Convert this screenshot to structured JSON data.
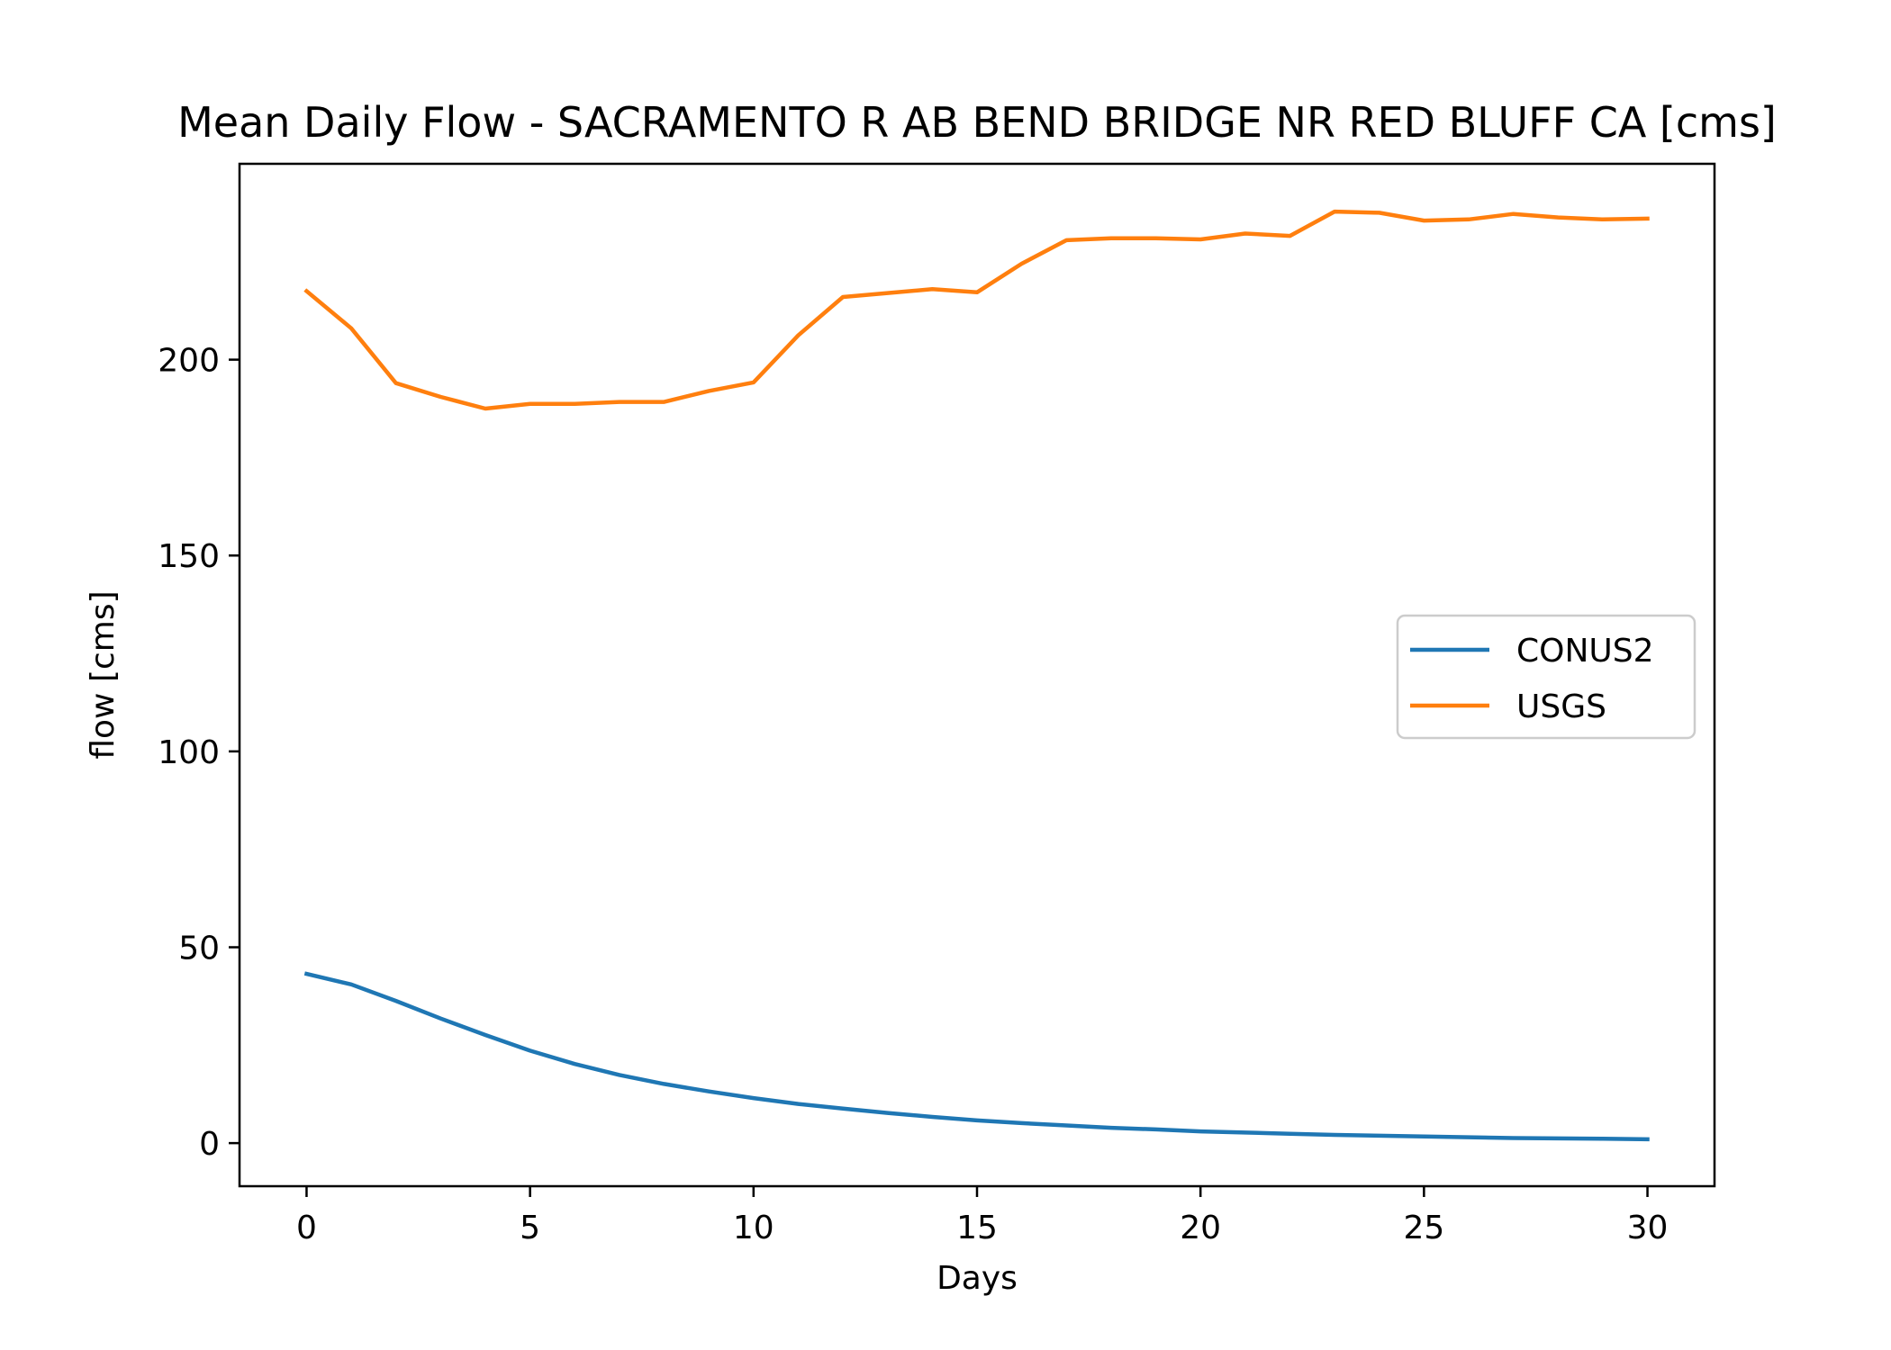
{
  "chart_data": {
    "type": "line",
    "title": "Mean Daily Flow - SACRAMENTO R AB BEND BRIDGE NR RED BLUFF CA [cms]",
    "xlabel": "Days",
    "ylabel": "flow [cms]",
    "xlim": [
      -1.5,
      31.5
    ],
    "ylim": [
      -11,
      250
    ],
    "xticks": [
      0,
      5,
      10,
      15,
      20,
      25,
      30
    ],
    "yticks": [
      0,
      50,
      100,
      150,
      200
    ],
    "grid": false,
    "legend_position": "center-right",
    "x": [
      0,
      1,
      2,
      3,
      4,
      5,
      6,
      7,
      8,
      9,
      10,
      11,
      12,
      13,
      14,
      15,
      16,
      17,
      18,
      19,
      20,
      21,
      22,
      23,
      24,
      25,
      26,
      27,
      28,
      29,
      30
    ],
    "series": [
      {
        "name": "CONUS2",
        "color": "#1f77b4",
        "values": [
          43.2,
          40.5,
          36.3,
          31.8,
          27.6,
          23.6,
          20.2,
          17.4,
          15.1,
          13.2,
          11.5,
          10.0,
          8.8,
          7.7,
          6.7,
          5.8,
          5.1,
          4.5,
          3.9,
          3.5,
          3.0,
          2.7,
          2.4,
          2.1,
          1.9,
          1.7,
          1.5,
          1.3,
          1.2,
          1.1,
          1.0
        ]
      },
      {
        "name": "USGS",
        "color": "#ff7f0e",
        "values": [
          217.5,
          208.0,
          194.0,
          190.5,
          187.5,
          188.7,
          188.7,
          189.2,
          189.2,
          192.0,
          194.2,
          206.2,
          216.0,
          217.0,
          218.0,
          217.2,
          224.5,
          230.5,
          231.0,
          231.0,
          230.7,
          232.2,
          231.6,
          237.8,
          237.5,
          235.5,
          235.8,
          237.2,
          236.3,
          235.8,
          236.0
        ]
      }
    ]
  }
}
